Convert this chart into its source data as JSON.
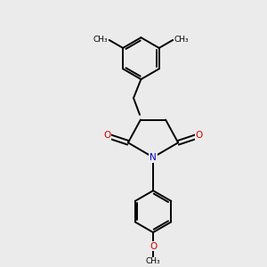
{
  "background_color": "#ebebeb",
  "atom_color_N": "#0000cc",
  "atom_color_O": "#cc0000",
  "atom_color_C": "#000000",
  "bond_color": "#000000",
  "bond_width": 1.4,
  "xlim": [
    -2.0,
    2.0
  ],
  "ylim": [
    -3.2,
    3.2
  ],
  "figsize": [
    3.0,
    3.0
  ],
  "dpi": 100,
  "font_size_atom": 7.5,
  "font_size_methyl": 6.5,
  "font_size_methoxy": 6.5
}
